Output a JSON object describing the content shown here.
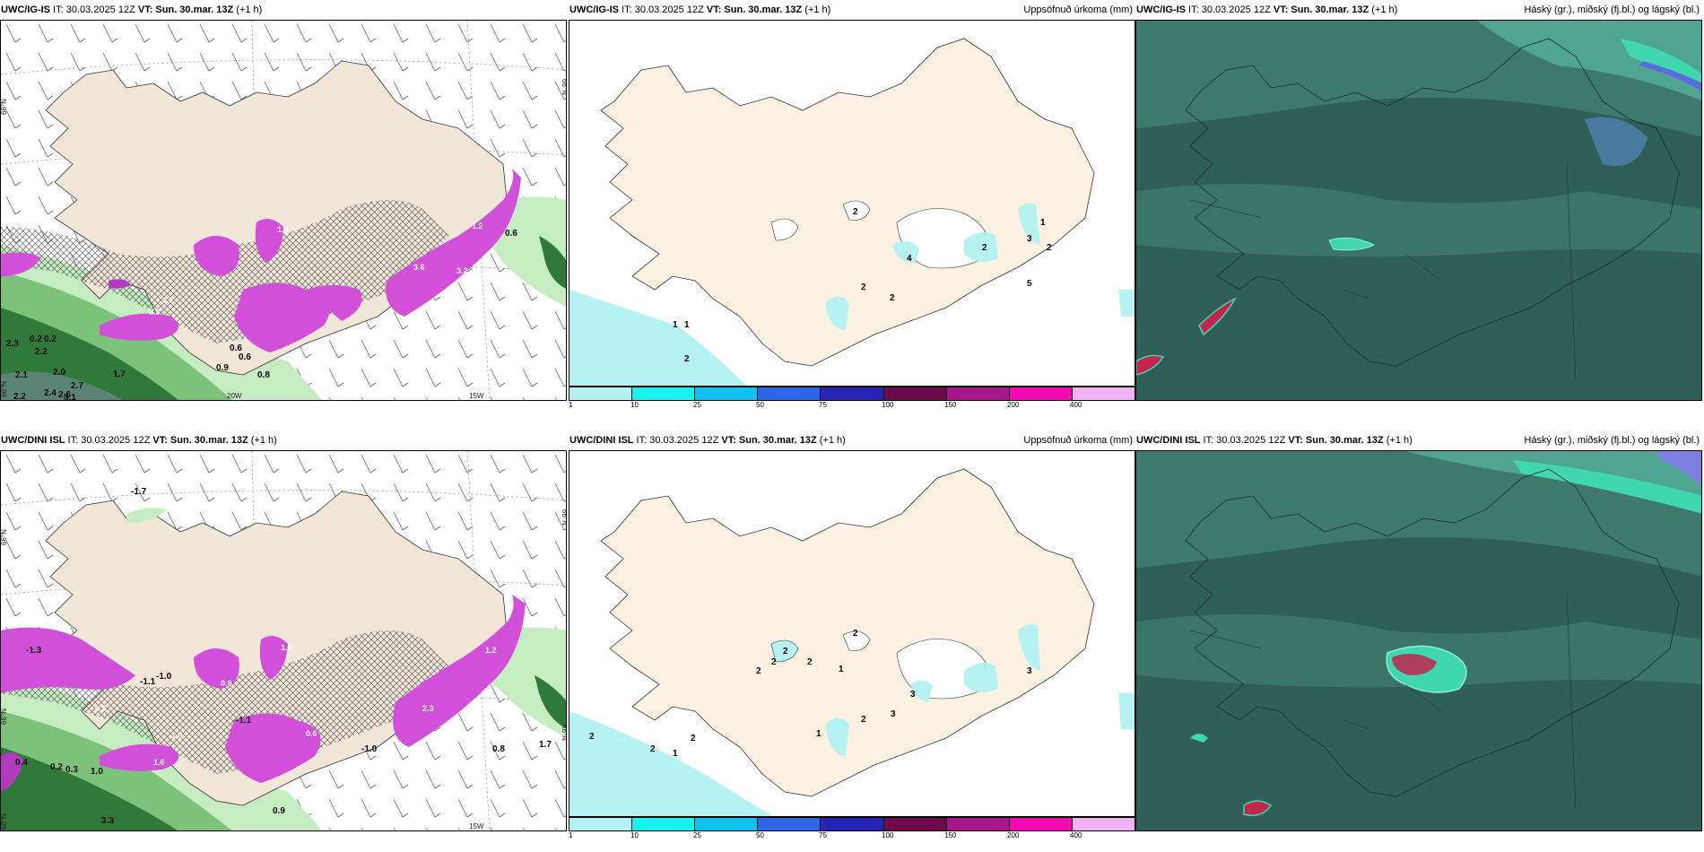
{
  "rows": [
    {
      "model": "UWC/IG-IS",
      "panels": [
        {
          "header_left_prefix": "UWC/IG-IS",
          "header_it": " IT: 30.03.2025 12Z ",
          "header_vt_label": "VT:",
          "header_vt_value": " Sun. 30.mar. 13Z",
          "header_lead": " (+1 h)",
          "header_right": ""
        },
        {
          "header_left_prefix": "UWC/IG-IS",
          "header_it": " IT: 30.03.2025 12Z ",
          "header_vt_label": "VT:",
          "header_vt_value": " Sun. 30.mar. 13Z",
          "header_lead": " (+1 h)",
          "header_right": "Uppsöfnuð úrkoma (mm)"
        },
        {
          "header_left_prefix": "UWC/IG-IS",
          "header_it": " IT: 30.03.2025 12Z ",
          "header_vt_label": "VT:",
          "header_vt_value": " Sun. 30.mar. 13Z",
          "header_lead": " (+1 h)",
          "header_right": "Háský (gr.), miðský (fj.bl.) og lágský (bl.)"
        }
      ],
      "temp_labels": [
        "0.2",
        "0.2",
        "2.3",
        "2.2",
        "2.1",
        "2.0",
        "1.7",
        "2.4",
        "2.6",
        "2.7",
        "3.1",
        "2.2",
        "0.6",
        "0.6",
        "0.9",
        "0.8",
        "0.7",
        "0.9",
        "1.9",
        "3.6",
        "3.2",
        "0.6",
        "1.2"
      ],
      "precip_labels": [
        "2",
        "2",
        "2",
        "4",
        "2",
        "3",
        "5",
        "1",
        "2",
        "1",
        "1",
        "2"
      ]
    },
    {
      "model": "UWC/DINI ISL",
      "panels": [
        {
          "header_left_prefix": "UWC/DINI ISL",
          "header_it": " IT: 30.03.2025 12Z ",
          "header_vt_label": "VT:",
          "header_vt_value": " Sun. 30.mar. 13Z",
          "header_lead": " (+1 h)",
          "header_right": ""
        },
        {
          "header_left_prefix": "UWC/DINI ISL",
          "header_it": " IT: 30.03.2025 12Z ",
          "header_vt_label": "VT:",
          "header_vt_value": " Sun. 30.mar. 13Z",
          "header_lead": " (+1 h)",
          "header_right": "Uppsöfnuð úrkoma (mm)"
        },
        {
          "header_left_prefix": "UWC/DINI ISL",
          "header_it": " IT: 30.03.2025 12Z ",
          "header_vt_label": "VT:",
          "header_vt_value": " Sun. 30.mar. 13Z",
          "header_lead": " (+1 h)",
          "header_right": "Háský (gr.), miðský (fj.bl.) og lágský (bl.)"
        }
      ],
      "temp_labels": [
        "-1.3",
        "-1.1",
        "-1.0",
        "0.4",
        "0.2",
        "0.3",
        "1.0",
        "3.3",
        "0.9",
        "0.8",
        "1.7",
        "-1.1",
        "-1.0",
        "0.6",
        "2.3",
        "1.9",
        "0.9",
        "1.0",
        "1.6",
        "-1.7",
        "1.2",
        "0.5"
      ],
      "precip_labels": [
        "2",
        "2",
        "2",
        "2",
        "2",
        "1",
        "3",
        "3",
        "3",
        "2",
        "1",
        "2",
        "2",
        "1",
        "2"
      ]
    }
  ],
  "axis_labels": {
    "lat_66": "66°N",
    "lon_20": "20W",
    "lon_15": "15W"
  },
  "legend": {
    "ticks": [
      "1",
      "10",
      "25",
      "50",
      "75",
      "100",
      "150",
      "200",
      "400"
    ],
    "colors": [
      "#b6f2f2",
      "#19f0f0",
      "#12c2ee",
      "#2f66e6",
      "#2626b3",
      "#6b0a4a",
      "#a8178c",
      "#f20ab3",
      "#f2b3f2"
    ]
  },
  "colors": {
    "land": "#f2e6d9",
    "land_light": "#fdf1e3",
    "sea": "#ffffff",
    "precip_pink": "#d24fd9",
    "precip_green_dark": "#2f7a3a",
    "precip_green": "#7cc27a",
    "precip_green_light": "#c6ecc2",
    "cloud_dark": "#2f5f57",
    "cloud_mid": "#3d7a6c",
    "cloud_light": "#4fa592",
    "cloud_cyan": "#40d6b0",
    "cloud_blue": "#7d7fe0",
    "accent_red": "#c2264f"
  }
}
